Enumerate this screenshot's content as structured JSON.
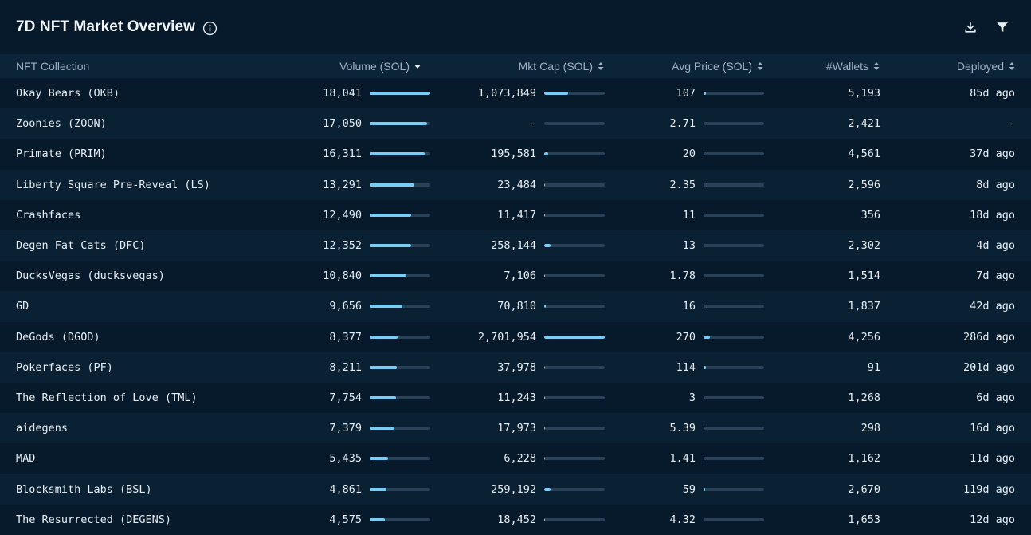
{
  "header": {
    "title": "7D NFT Market Overview"
  },
  "icons": {
    "info": "info-circle-icon",
    "download": "download-icon",
    "filter": "filter-icon"
  },
  "colors": {
    "background": "#061a2c",
    "bar_fill": "#79cdf5",
    "bar_track": "#2a4257",
    "row_alt": "#0a2134",
    "header_row": "#0b2438"
  },
  "columns": {
    "name": "NFT Collection",
    "volume": "Volume (SOL)",
    "mktcap": "Mkt Cap (SOL)",
    "avgprice": "Avg Price (SOL)",
    "wallets": "#Wallets",
    "deployed": "Deployed"
  },
  "sort": {
    "column": "volume",
    "direction": "desc"
  },
  "rows": [
    {
      "name": "Okay Bears (OKB)",
      "volume": "18,041",
      "volume_pct": 100,
      "mktcap": "1,073,849",
      "mktcap_pct": 40,
      "avgprice": "107",
      "avgprice_pct": 4,
      "wallets": "5,193",
      "deployed": "85d ago"
    },
    {
      "name": "Zoonies (ZOON)",
      "volume": "17,050",
      "volume_pct": 95,
      "mktcap": "-",
      "mktcap_pct": 0,
      "avgprice": "2.71",
      "avgprice_pct": 1,
      "wallets": "2,421",
      "deployed": "-"
    },
    {
      "name": "Primate (PRIM)",
      "volume": "16,311",
      "volume_pct": 91,
      "mktcap": "195,581",
      "mktcap_pct": 7,
      "avgprice": "20",
      "avgprice_pct": 1,
      "wallets": "4,561",
      "deployed": "37d ago"
    },
    {
      "name": "Liberty Square Pre-Reveal (LS)",
      "volume": "13,291",
      "volume_pct": 74,
      "mktcap": "23,484",
      "mktcap_pct": 1,
      "avgprice": "2.35",
      "avgprice_pct": 1,
      "wallets": "2,596",
      "deployed": "8d ago"
    },
    {
      "name": "Crashfaces",
      "volume": "12,490",
      "volume_pct": 69,
      "mktcap": "11,417",
      "mktcap_pct": 1,
      "avgprice": "11",
      "avgprice_pct": 1,
      "wallets": "356",
      "deployed": "18d ago"
    },
    {
      "name": "Degen Fat Cats (DFC)",
      "volume": "12,352",
      "volume_pct": 68,
      "mktcap": "258,144",
      "mktcap_pct": 10,
      "avgprice": "13",
      "avgprice_pct": 1,
      "wallets": "2,302",
      "deployed": "4d ago"
    },
    {
      "name": "DucksVegas (ducksvegas)",
      "volume": "10,840",
      "volume_pct": 60,
      "mktcap": "7,106",
      "mktcap_pct": 1,
      "avgprice": "1.78",
      "avgprice_pct": 1,
      "wallets": "1,514",
      "deployed": "7d ago"
    },
    {
      "name": "GD",
      "volume": "9,656",
      "volume_pct": 54,
      "mktcap": "70,810",
      "mktcap_pct": 3,
      "avgprice": "16",
      "avgprice_pct": 1,
      "wallets": "1,837",
      "deployed": "42d ago"
    },
    {
      "name": "DeGods (DGOD)",
      "volume": "8,377",
      "volume_pct": 46,
      "mktcap": "2,701,954",
      "mktcap_pct": 100,
      "avgprice": "270",
      "avgprice_pct": 10,
      "wallets": "4,256",
      "deployed": "286d ago"
    },
    {
      "name": "Pokerfaces (PF)",
      "volume": "8,211",
      "volume_pct": 45,
      "mktcap": "37,978",
      "mktcap_pct": 1,
      "avgprice": "114",
      "avgprice_pct": 4,
      "wallets": "91",
      "deployed": "201d ago"
    },
    {
      "name": "The Reflection of Love (TML)",
      "volume": "7,754",
      "volume_pct": 43,
      "mktcap": "11,243",
      "mktcap_pct": 1,
      "avgprice": "3",
      "avgprice_pct": 1,
      "wallets": "1,268",
      "deployed": "6d ago"
    },
    {
      "name": "aidegens",
      "volume": "7,379",
      "volume_pct": 41,
      "mktcap": "17,973",
      "mktcap_pct": 1,
      "avgprice": "5.39",
      "avgprice_pct": 1,
      "wallets": "298",
      "deployed": "16d ago"
    },
    {
      "name": "MAD",
      "volume": "5,435",
      "volume_pct": 30,
      "mktcap": "6,228",
      "mktcap_pct": 1,
      "avgprice": "1.41",
      "avgprice_pct": 1,
      "wallets": "1,162",
      "deployed": "11d ago"
    },
    {
      "name": "Blocksmith Labs (BSL)",
      "volume": "4,861",
      "volume_pct": 27,
      "mktcap": "259,192",
      "mktcap_pct": 10,
      "avgprice": "59",
      "avgprice_pct": 2,
      "wallets": "2,670",
      "deployed": "119d ago"
    },
    {
      "name": "The Resurrected (DEGENS)",
      "volume": "4,575",
      "volume_pct": 25,
      "mktcap": "18,452",
      "mktcap_pct": 1,
      "avgprice": "4.32",
      "avgprice_pct": 1,
      "wallets": "1,653",
      "deployed": "12d ago"
    }
  ]
}
